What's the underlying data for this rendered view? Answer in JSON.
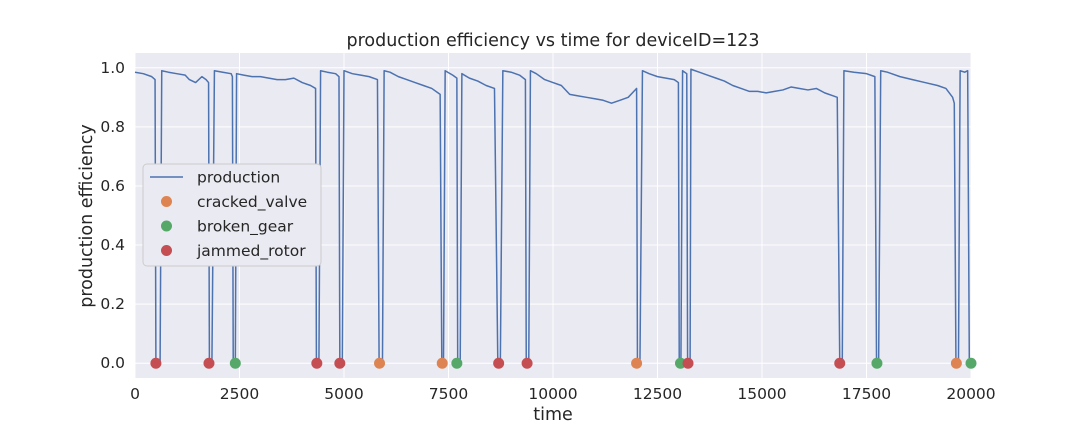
{
  "chart_data": {
    "type": "line",
    "title": "production efficiency vs time for deviceID=123",
    "xlabel": "time",
    "ylabel": "production efficiency",
    "xlim": [
      0,
      20000
    ],
    "ylim": [
      -0.05,
      1.05
    ],
    "xticks": [
      0,
      2500,
      5000,
      7500,
      10000,
      12500,
      15000,
      17500,
      20000
    ],
    "xtick_labels": [
      "0",
      "2500",
      "5000",
      "7500",
      "10000",
      "12500",
      "15000",
      "17500",
      "20000"
    ],
    "yticks": [
      0.0,
      0.2,
      0.4,
      0.6,
      0.8,
      1.0
    ],
    "ytick_labels": [
      "0.0",
      "0.2",
      "0.4",
      "0.6",
      "0.8",
      "1.0"
    ],
    "grid": true,
    "legend_position": "center-left",
    "series": [
      {
        "name": "production",
        "color": "#4c72b0",
        "points": [
          [
            0,
            0.985
          ],
          [
            200,
            0.98
          ],
          [
            400,
            0.97
          ],
          [
            480,
            0.96
          ],
          [
            500,
            0.0
          ],
          [
            600,
            0.0
          ],
          [
            640,
            0.99
          ],
          [
            800,
            0.985
          ],
          [
            1000,
            0.98
          ],
          [
            1200,
            0.975
          ],
          [
            1300,
            0.96
          ],
          [
            1450,
            0.95
          ],
          [
            1600,
            0.97
          ],
          [
            1700,
            0.96
          ],
          [
            1760,
            0.95
          ],
          [
            1780,
            0.0
          ],
          [
            1840,
            0.0
          ],
          [
            1900,
            0.99
          ],
          [
            2100,
            0.985
          ],
          [
            2300,
            0.98
          ],
          [
            2330,
            0.97
          ],
          [
            2350,
            0.0
          ],
          [
            2400,
            0.0
          ],
          [
            2430,
            0.98
          ],
          [
            2600,
            0.975
          ],
          [
            2800,
            0.97
          ],
          [
            3000,
            0.97
          ],
          [
            3200,
            0.965
          ],
          [
            3400,
            0.96
          ],
          [
            3600,
            0.96
          ],
          [
            3800,
            0.965
          ],
          [
            4000,
            0.95
          ],
          [
            4200,
            0.94
          ],
          [
            4320,
            0.93
          ],
          [
            4340,
            0.0
          ],
          [
            4400,
            0.0
          ],
          [
            4440,
            0.99
          ],
          [
            4600,
            0.985
          ],
          [
            4800,
            0.98
          ],
          [
            4880,
            0.97
          ],
          [
            4900,
            0.0
          ],
          [
            4960,
            0.0
          ],
          [
            5000,
            0.99
          ],
          [
            5200,
            0.98
          ],
          [
            5400,
            0.975
          ],
          [
            5600,
            0.97
          ],
          [
            5800,
            0.96
          ],
          [
            5840,
            0.0
          ],
          [
            5920,
            0.0
          ],
          [
            5960,
            0.99
          ],
          [
            6100,
            0.985
          ],
          [
            6300,
            0.97
          ],
          [
            6500,
            0.96
          ],
          [
            6700,
            0.95
          ],
          [
            6900,
            0.94
          ],
          [
            7100,
            0.93
          ],
          [
            7300,
            0.91
          ],
          [
            7340,
            0.0
          ],
          [
            7380,
            0.0
          ],
          [
            7420,
            0.99
          ],
          [
            7600,
            0.975
          ],
          [
            7700,
            0.965
          ],
          [
            7720,
            0.0
          ],
          [
            7780,
            0.0
          ],
          [
            7820,
            0.98
          ],
          [
            8000,
            0.965
          ],
          [
            8200,
            0.955
          ],
          [
            8400,
            0.94
          ],
          [
            8600,
            0.93
          ],
          [
            8680,
            0.0
          ],
          [
            8740,
            0.0
          ],
          [
            8800,
            0.99
          ],
          [
            9000,
            0.985
          ],
          [
            9200,
            0.975
          ],
          [
            9340,
            0.96
          ],
          [
            9360,
            0.0
          ],
          [
            9420,
            0.0
          ],
          [
            9460,
            0.99
          ],
          [
            9600,
            0.98
          ],
          [
            9800,
            0.96
          ],
          [
            10000,
            0.95
          ],
          [
            10200,
            0.94
          ],
          [
            10400,
            0.91
          ],
          [
            10600,
            0.905
          ],
          [
            10800,
            0.9
          ],
          [
            11000,
            0.895
          ],
          [
            11200,
            0.89
          ],
          [
            11400,
            0.88
          ],
          [
            11600,
            0.89
          ],
          [
            11800,
            0.9
          ],
          [
            12000,
            0.93
          ],
          [
            12020,
            0.0
          ],
          [
            12080,
            0.0
          ],
          [
            12140,
            0.99
          ],
          [
            12300,
            0.98
          ],
          [
            12500,
            0.97
          ],
          [
            12700,
            0.965
          ],
          [
            12900,
            0.96
          ],
          [
            13000,
            0.95
          ],
          [
            13020,
            0.0
          ],
          [
            13060,
            0.0
          ],
          [
            13100,
            0.99
          ],
          [
            13200,
            0.98
          ],
          [
            13220,
            0.0
          ],
          [
            13280,
            0.0
          ],
          [
            13300,
            0.995
          ],
          [
            13500,
            0.985
          ],
          [
            13700,
            0.975
          ],
          [
            13900,
            0.965
          ],
          [
            14100,
            0.955
          ],
          [
            14300,
            0.94
          ],
          [
            14500,
            0.93
          ],
          [
            14700,
            0.92
          ],
          [
            14900,
            0.92
          ],
          [
            15100,
            0.915
          ],
          [
            15300,
            0.92
          ],
          [
            15500,
            0.925
          ],
          [
            15700,
            0.935
          ],
          [
            15900,
            0.93
          ],
          [
            16100,
            0.925
          ],
          [
            16300,
            0.93
          ],
          [
            16500,
            0.915
          ],
          [
            16700,
            0.905
          ],
          [
            16800,
            0.9
          ],
          [
            16860,
            0.0
          ],
          [
            16920,
            0.0
          ],
          [
            16960,
            0.99
          ],
          [
            17200,
            0.985
          ],
          [
            17500,
            0.98
          ],
          [
            17700,
            0.97
          ],
          [
            17740,
            0.0
          ],
          [
            17790,
            0.0
          ],
          [
            17840,
            0.99
          ],
          [
            18000,
            0.985
          ],
          [
            18300,
            0.97
          ],
          [
            18600,
            0.96
          ],
          [
            18900,
            0.95
          ],
          [
            19200,
            0.94
          ],
          [
            19400,
            0.93
          ],
          [
            19560,
            0.9
          ],
          [
            19600,
            0.88
          ],
          [
            19640,
            0.0
          ],
          [
            19700,
            0.0
          ],
          [
            19740,
            0.99
          ],
          [
            19850,
            0.985
          ],
          [
            19920,
            0.99
          ],
          [
            19960,
            0.0
          ],
          [
            20000,
            0.0
          ]
        ]
      },
      {
        "name": "cracked_valve",
        "color": "#dd8452",
        "x": [
          5850,
          7350,
          12000,
          19650
        ],
        "y": [
          0.0,
          0.0,
          0.0,
          0.0
        ]
      },
      {
        "name": "broken_gear",
        "color": "#55a868",
        "x": [
          2400,
          7700,
          13050,
          17750,
          20000
        ],
        "y": [
          0.0,
          0.0,
          0.0,
          0.0,
          0.0
        ]
      },
      {
        "name": "jammed_rotor",
        "color": "#c44e52",
        "x": [
          500,
          1770,
          4350,
          4900,
          8700,
          9380,
          13230,
          16860
        ],
        "y": [
          0.0,
          0.0,
          0.0,
          0.0,
          0.0,
          0.0,
          0.0,
          0.0
        ]
      }
    ]
  },
  "style": {
    "axes_background": "#eaeaf2",
    "grid_color": "#ffffff",
    "legend_background": "#eaeaf2"
  }
}
